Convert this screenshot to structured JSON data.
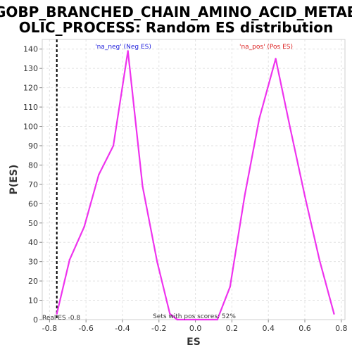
{
  "chart_data": {
    "type": "line",
    "title_line1": "GOBP_BRANCHED_CHAIN_AMINO_ACID_METAB",
    "title_line2": "OLIC_PROCESS: Random ES distribution",
    "xlabel": "ES",
    "ylabel": "P(ES)",
    "xlim": [
      -0.84,
      0.82
    ],
    "ylim": [
      0,
      145
    ],
    "xticks": [
      -0.8,
      -0.6,
      -0.4,
      -0.2,
      0.0,
      0.2,
      0.4,
      0.6,
      0.8
    ],
    "xtick_labels": [
      "-0.8",
      "-0.6",
      "-0.4",
      "-0.2",
      "0.0",
      "0.2",
      "0.4",
      "0.6",
      "0.8"
    ],
    "yticks": [
      0,
      10,
      20,
      30,
      40,
      50,
      60,
      70,
      80,
      90,
      100,
      110,
      120,
      130,
      140
    ],
    "grid": true,
    "series": [
      {
        "color": "#ee33ee",
        "points": [
          [
            -0.76,
            3
          ],
          [
            -0.69,
            31
          ],
          [
            -0.61,
            48
          ],
          [
            -0.53,
            75
          ],
          [
            -0.45,
            90
          ],
          [
            -0.37,
            139
          ],
          [
            -0.29,
            69
          ],
          [
            -0.21,
            30
          ],
          [
            -0.14,
            3
          ],
          [
            -0.1,
            0
          ],
          [
            0.12,
            0
          ],
          [
            0.19,
            17
          ],
          [
            0.27,
            64
          ],
          [
            0.35,
            104
          ],
          [
            0.44,
            135
          ],
          [
            0.52,
            99
          ],
          [
            0.6,
            64
          ],
          [
            0.68,
            31
          ],
          [
            0.76,
            3
          ]
        ]
      }
    ],
    "real_es": -0.76,
    "annotations": {
      "neg_label": "'na_neg' (Neg ES)",
      "neg_color": "#2222dd",
      "pos_label": "'na_pos' (Pos ES)",
      "pos_color": "#dd2222",
      "real_es_label": "Real ES -0.8",
      "sets_pos_label": "Sets with pos scores: 52%"
    }
  }
}
